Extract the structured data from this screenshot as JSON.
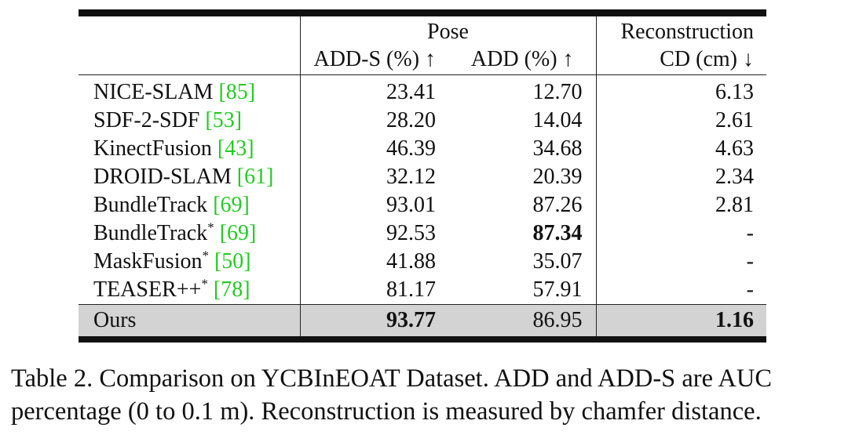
{
  "table": {
    "group_pose": "Pose",
    "group_recon": "Reconstruction",
    "col_adds": "ADD-S (%) ↑",
    "col_add": "ADD (%) ↑",
    "col_cd": "CD (cm) ↓",
    "rows": [
      {
        "method": "NICE-SLAM",
        "star": "",
        "ref": "[85]",
        "adds": "23.41",
        "add": "12.70",
        "cd": "6.13"
      },
      {
        "method": "SDF-2-SDF",
        "star": "",
        "ref": "[53]",
        "adds": "28.20",
        "add": "14.04",
        "cd": "2.61"
      },
      {
        "method": "KinectFusion",
        "star": "",
        "ref": "[43]",
        "adds": "46.39",
        "add": "34.68",
        "cd": "4.63"
      },
      {
        "method": "DROID-SLAM",
        "star": "",
        "ref": "[61]",
        "adds": "32.12",
        "add": "20.39",
        "cd": "2.34"
      },
      {
        "method": "BundleTrack",
        "star": "",
        "ref": "[69]",
        "adds": "93.01",
        "add": "87.26",
        "cd": "2.81"
      },
      {
        "method": "BundleTrack",
        "star": "*",
        "ref": "[69]",
        "adds": "92.53",
        "add": "87.34",
        "cd": "-"
      },
      {
        "method": "MaskFusion",
        "star": "*",
        "ref": "[50]",
        "adds": "41.88",
        "add": "35.07",
        "cd": "-"
      },
      {
        "method": "TEASER++",
        "star": "*",
        "ref": "[78]",
        "adds": "81.17",
        "add": "57.91",
        "cd": "-"
      }
    ],
    "ours": {
      "method": "Ours",
      "adds": "93.77",
      "add": "86.95",
      "cd": "1.16"
    }
  },
  "caption": {
    "line1": "Table 2. Comparison on YCBInEOAT Dataset. ADD and ADD-S are AUC",
    "line2": "percentage (0 to 0.1 m). Reconstruction is measured by chamfer distance."
  },
  "colors": {
    "citation": "#22cc22",
    "highlight_row": "#d3d3d3"
  }
}
